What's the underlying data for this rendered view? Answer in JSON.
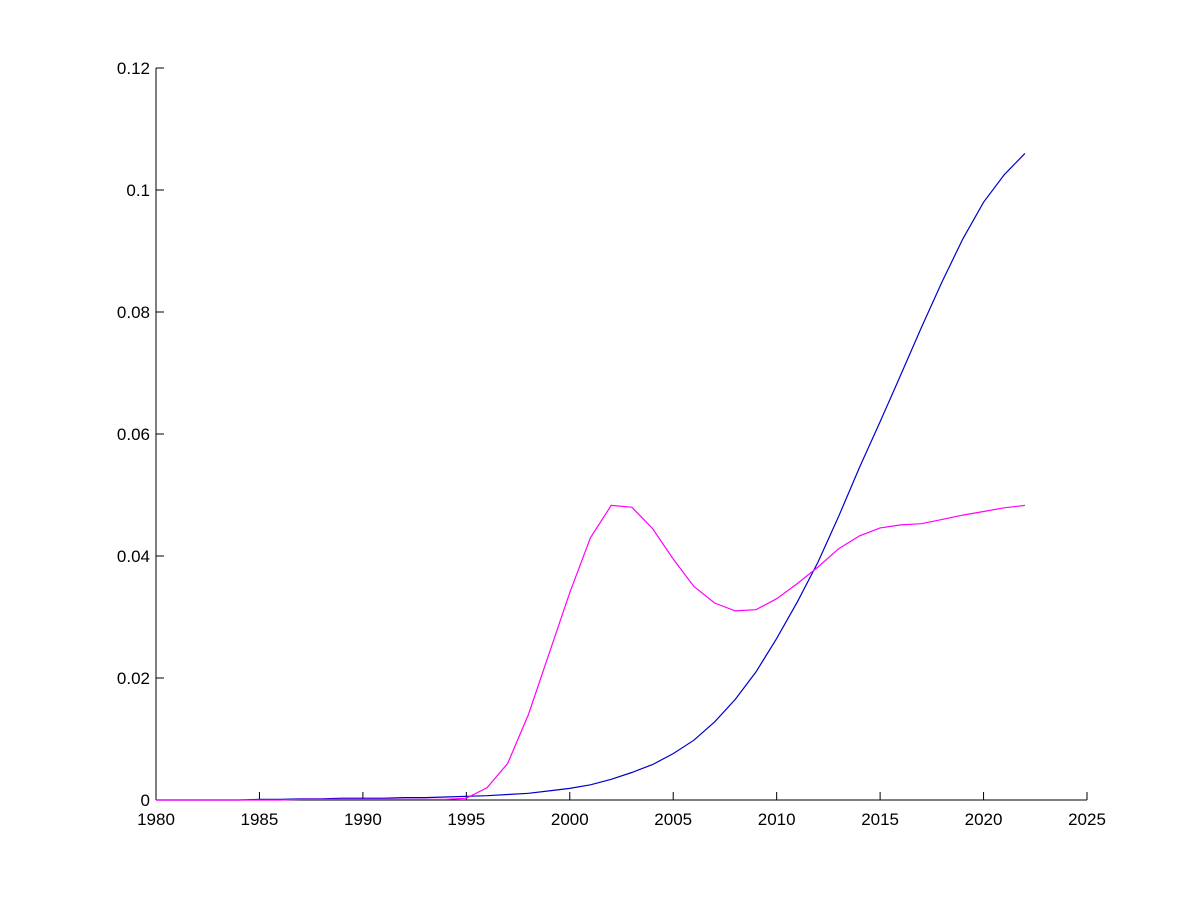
{
  "chart_data": {
    "type": "line",
    "title": "",
    "xlabel": "",
    "ylabel": "",
    "xlim": [
      1980,
      2025
    ],
    "ylim": [
      0,
      0.12
    ],
    "xticks": [
      "1980",
      "1985",
      "1990",
      "1995",
      "2000",
      "2005",
      "2010",
      "2015",
      "2020",
      "2025"
    ],
    "yticks": [
      "0",
      "0.02",
      "0.04",
      "0.06",
      "0.08",
      "0.1",
      "0.12"
    ],
    "grid": false,
    "x": [
      1980,
      1981,
      1982,
      1983,
      1984,
      1985,
      1986,
      1987,
      1988,
      1989,
      1990,
      1991,
      1992,
      1993,
      1994,
      1995,
      1996,
      1997,
      1998,
      1999,
      2000,
      2001,
      2002,
      2003,
      2004,
      2005,
      2006,
      2007,
      2008,
      2009,
      2010,
      2011,
      2012,
      2013,
      2014,
      2015,
      2016,
      2017,
      2018,
      2019,
      2020,
      2021,
      2022
    ],
    "series": [
      {
        "color": "#0000cc",
        "values": [
          0,
          0,
          0,
          0,
          0,
          0.0001,
          0.0001,
          0.0002,
          0.0002,
          0.0003,
          0.0003,
          0.0003,
          0.0004,
          0.0004,
          0.0005,
          0.0006,
          0.0007,
          0.0009,
          0.0011,
          0.0015,
          0.0019,
          0.0025,
          0.0034,
          0.0045,
          0.0058,
          0.0076,
          0.0098,
          0.0128,
          0.0165,
          0.021,
          0.0265,
          0.0325,
          0.039,
          0.0465,
          0.0545,
          0.062,
          0.0697,
          0.0775,
          0.085,
          0.092,
          0.098,
          0.1025,
          0.106
        ]
      },
      {
        "color": "#ff00ff",
        "values": [
          0,
          0,
          0,
          0,
          0,
          0,
          0,
          0.0001,
          0.0001,
          0.0001,
          0.0001,
          0.0001,
          0.0001,
          0.0001,
          0.0001,
          0.0003,
          0.002,
          0.006,
          0.014,
          0.024,
          0.034,
          0.043,
          0.0483,
          0.048,
          0.0445,
          0.0395,
          0.035,
          0.0323,
          0.031,
          0.0312,
          0.033,
          0.0355,
          0.0382,
          0.0412,
          0.0433,
          0.0446,
          0.0451,
          0.0453,
          0.046,
          0.0467,
          0.0473,
          0.0479,
          0.0483
        ]
      }
    ]
  }
}
